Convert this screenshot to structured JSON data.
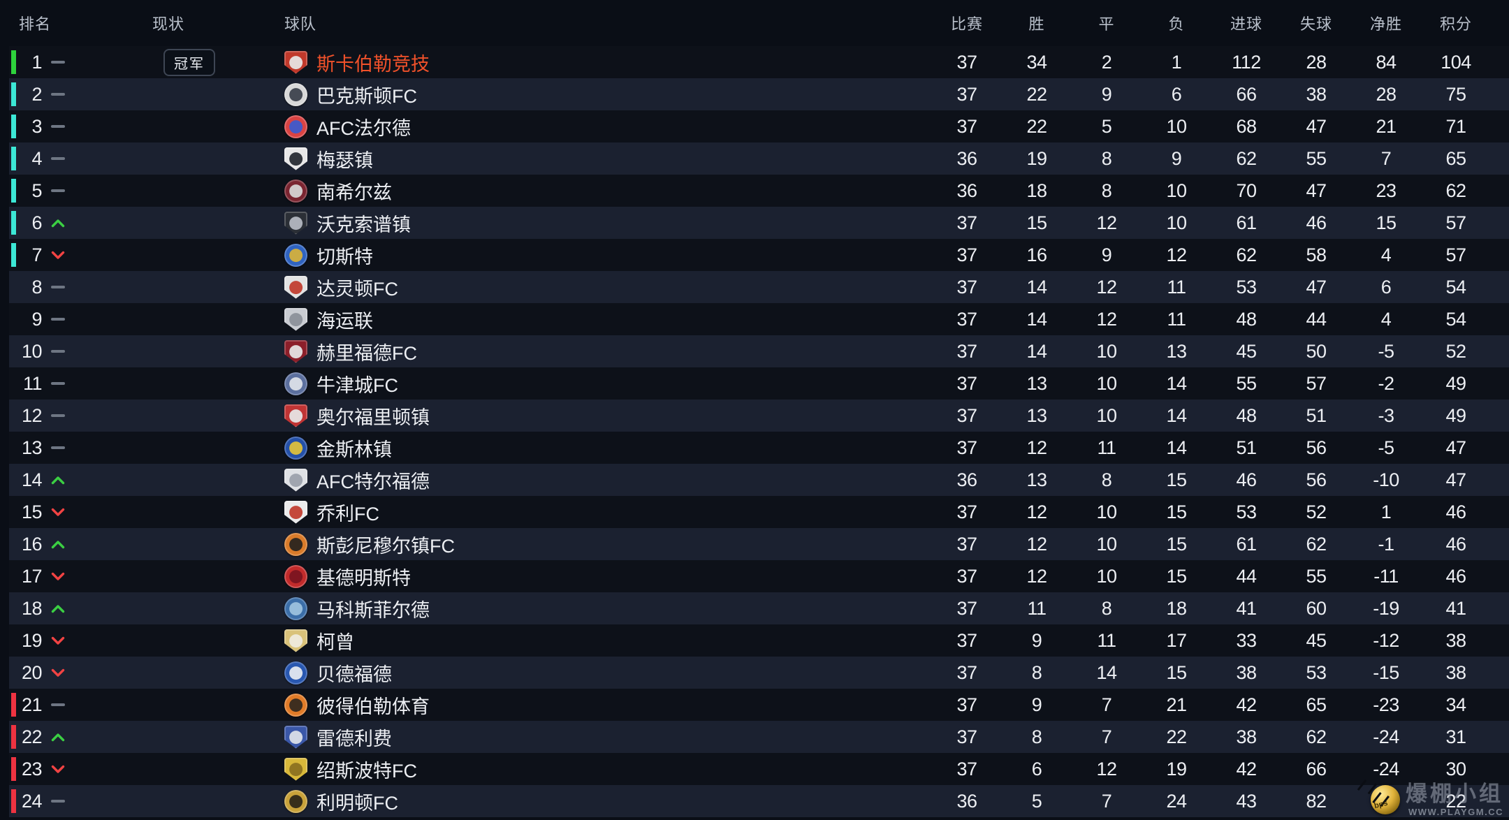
{
  "table": {
    "headers": {
      "rank": "排名",
      "status": "现状",
      "team": "球队",
      "stats": [
        "比赛",
        "胜",
        "平",
        "负",
        "进球",
        "失球",
        "净胜",
        "积分"
      ]
    },
    "champion_badge": "冠军",
    "rows": [
      {
        "rank": 1,
        "status": "steady",
        "zone": "green",
        "champion": true,
        "team": "斯卡伯勒竞技",
        "crest": {
          "shape": "shield",
          "colors": [
            "#c0392b",
            "#e8e8e8"
          ]
        },
        "stats": [
          37,
          34,
          2,
          1,
          112,
          28,
          84,
          104
        ]
      },
      {
        "rank": 2,
        "status": "steady",
        "zone": "cyan",
        "champion": false,
        "team": "巴克斯顿FC",
        "crest": {
          "shape": "circle",
          "colors": [
            "#d8d8d8",
            "#3a3f4a"
          ]
        },
        "stats": [
          37,
          22,
          9,
          6,
          66,
          38,
          28,
          75
        ]
      },
      {
        "rank": 3,
        "status": "steady",
        "zone": "cyan",
        "champion": false,
        "team": "AFC法尔德",
        "crest": {
          "shape": "circle",
          "colors": [
            "#d94343",
            "#3b5bd0"
          ]
        },
        "stats": [
          37,
          22,
          5,
          10,
          68,
          47,
          21,
          71
        ]
      },
      {
        "rank": 4,
        "status": "steady",
        "zone": "cyan",
        "champion": false,
        "team": "梅瑟镇",
        "crest": {
          "shape": "shield",
          "colors": [
            "#e8e8e8",
            "#22262e"
          ]
        },
        "stats": [
          36,
          19,
          8,
          9,
          62,
          55,
          7,
          65
        ]
      },
      {
        "rank": 5,
        "status": "steady",
        "zone": "cyan",
        "champion": false,
        "team": "南希尔兹",
        "crest": {
          "shape": "circle",
          "colors": [
            "#7a2430",
            "#d8d8d8"
          ]
        },
        "stats": [
          36,
          18,
          8,
          10,
          70,
          47,
          23,
          62
        ]
      },
      {
        "rank": 6,
        "status": "up",
        "zone": "cyan",
        "champion": false,
        "team": "沃克索谱镇",
        "crest": {
          "shape": "shield",
          "colors": [
            "#2b2f36",
            "#b7bcc4"
          ]
        },
        "stats": [
          37,
          15,
          12,
          10,
          61,
          46,
          15,
          57
        ]
      },
      {
        "rank": 7,
        "status": "down",
        "zone": "cyan",
        "champion": false,
        "team": "切斯特",
        "crest": {
          "shape": "circle",
          "colors": [
            "#2f63c0",
            "#d9b23a"
          ]
        },
        "stats": [
          37,
          16,
          9,
          12,
          62,
          58,
          4,
          57
        ]
      },
      {
        "rank": 8,
        "status": "steady",
        "zone": null,
        "champion": false,
        "team": "达灵顿FC",
        "crest": {
          "shape": "shield",
          "colors": [
            "#e3e3e3",
            "#c0392b"
          ]
        },
        "stats": [
          37,
          14,
          12,
          11,
          53,
          47,
          6,
          54
        ]
      },
      {
        "rank": 9,
        "status": "steady",
        "zone": null,
        "champion": false,
        "team": "海运联",
        "crest": {
          "shape": "shield",
          "colors": [
            "#c9ccd2",
            "#8a8f98"
          ]
        },
        "stats": [
          37,
          14,
          12,
          11,
          48,
          44,
          4,
          54
        ]
      },
      {
        "rank": 10,
        "status": "steady",
        "zone": null,
        "champion": false,
        "team": "赫里福德FC",
        "crest": {
          "shape": "shield",
          "colors": [
            "#8c1f2a",
            "#e8e8e8"
          ]
        },
        "stats": [
          37,
          14,
          10,
          13,
          45,
          50,
          -5,
          52
        ]
      },
      {
        "rank": 11,
        "status": "steady",
        "zone": null,
        "champion": false,
        "team": "牛津城FC",
        "crest": {
          "shape": "circle",
          "colors": [
            "#5b6f9e",
            "#dfe3ea"
          ]
        },
        "stats": [
          37,
          13,
          10,
          14,
          55,
          57,
          -2,
          49
        ]
      },
      {
        "rank": 12,
        "status": "steady",
        "zone": null,
        "champion": false,
        "team": "奥尔福里顿镇",
        "crest": {
          "shape": "shield",
          "colors": [
            "#c03434",
            "#e8e8e8"
          ]
        },
        "stats": [
          37,
          13,
          10,
          14,
          48,
          51,
          -3,
          49
        ]
      },
      {
        "rank": 13,
        "status": "steady",
        "zone": null,
        "champion": false,
        "team": "金斯林镇",
        "crest": {
          "shape": "circle",
          "colors": [
            "#2450a8",
            "#e3c33a"
          ]
        },
        "stats": [
          37,
          12,
          11,
          14,
          51,
          56,
          -5,
          47
        ]
      },
      {
        "rank": 14,
        "status": "up",
        "zone": null,
        "champion": false,
        "team": "AFC特尔福德",
        "crest": {
          "shape": "shield",
          "colors": [
            "#dfe1e5",
            "#9aa0aa"
          ]
        },
        "stats": [
          36,
          13,
          8,
          15,
          46,
          56,
          -10,
          47
        ]
      },
      {
        "rank": 15,
        "status": "down",
        "zone": null,
        "champion": false,
        "team": "乔利FC",
        "crest": {
          "shape": "shield",
          "colors": [
            "#ebebeb",
            "#c0392b"
          ]
        },
        "stats": [
          37,
          12,
          10,
          15,
          53,
          52,
          1,
          46
        ]
      },
      {
        "rank": 16,
        "status": "up",
        "zone": null,
        "champion": false,
        "team": "斯彭尼穆尔镇FC",
        "crest": {
          "shape": "circle",
          "colors": [
            "#d97b2a",
            "#26221e"
          ]
        },
        "stats": [
          37,
          12,
          10,
          15,
          61,
          62,
          -1,
          46
        ]
      },
      {
        "rank": 17,
        "status": "down",
        "zone": null,
        "champion": false,
        "team": "基德明斯特",
        "crest": {
          "shape": "circle",
          "colors": [
            "#c22b2b",
            "#7a1420"
          ]
        },
        "stats": [
          37,
          12,
          10,
          15,
          44,
          55,
          -11,
          46
        ]
      },
      {
        "rank": 18,
        "status": "up",
        "zone": null,
        "champion": false,
        "team": "马科斯菲尔德",
        "crest": {
          "shape": "circle",
          "colors": [
            "#3b6ea8",
            "#9fc3e0"
          ]
        },
        "stats": [
          37,
          11,
          8,
          18,
          41,
          60,
          -19,
          41
        ]
      },
      {
        "rank": 19,
        "status": "down",
        "zone": null,
        "champion": false,
        "team": "柯曾",
        "crest": {
          "shape": "shield",
          "colors": [
            "#d9c27a",
            "#f0ece0"
          ]
        },
        "stats": [
          37,
          9,
          11,
          17,
          33,
          45,
          -12,
          38
        ]
      },
      {
        "rank": 20,
        "status": "down",
        "zone": null,
        "champion": false,
        "team": "贝德福德",
        "crest": {
          "shape": "circle",
          "colors": [
            "#2857b0",
            "#e8ecf2"
          ]
        },
        "stats": [
          37,
          8,
          14,
          15,
          38,
          53,
          -15,
          38
        ]
      },
      {
        "rank": 21,
        "status": "steady",
        "zone": "red",
        "champion": false,
        "team": "彼得伯勒体育",
        "crest": {
          "shape": "circle",
          "colors": [
            "#e07b28",
            "#30271e"
          ]
        },
        "stats": [
          37,
          9,
          7,
          21,
          42,
          65,
          -23,
          34
        ]
      },
      {
        "rank": 22,
        "status": "up",
        "zone": "red",
        "champion": false,
        "team": "雷德利费",
        "crest": {
          "shape": "shield",
          "colors": [
            "#3a57a8",
            "#dfe3ea"
          ]
        },
        "stats": [
          37,
          8,
          7,
          22,
          38,
          62,
          -24,
          31
        ]
      },
      {
        "rank": 23,
        "status": "down",
        "zone": "red",
        "champion": false,
        "team": "绍斯波特FC",
        "crest": {
          "shape": "shield",
          "colors": [
            "#d8b83a",
            "#8a6f1f"
          ]
        },
        "stats": [
          37,
          6,
          12,
          19,
          42,
          66,
          -24,
          30
        ]
      },
      {
        "rank": 24,
        "status": "steady",
        "zone": "red",
        "champion": false,
        "team": "利明顿FC",
        "crest": {
          "shape": "circle",
          "colors": [
            "#c9a23a",
            "#2a2418"
          ]
        },
        "stats": [
          36,
          5,
          7,
          24,
          43,
          82,
          -39,
          22
        ]
      }
    ]
  },
  "status_icons": {
    "steady": "dash-icon",
    "up": "up-arrow-icon",
    "down": "down-arrow-icon"
  },
  "watermark": {
    "logo_text": "bps",
    "title": "爆棚小组",
    "url": "WWW.PLAYGM.CC"
  },
  "colors": {
    "page_bg": "#0a0e16",
    "row_dark": "#0d1119",
    "row_light": "#1b2130",
    "header_text": "#b9c0cb",
    "text": "#edeff3",
    "champion_text": "#f0512a",
    "status_up": "#3bcf43",
    "status_down": "#f14343",
    "status_steady": "#6e7683",
    "zones": {
      "green": "#2ed33c",
      "cyan": "#3ce8d6",
      "red": "#ee3341"
    }
  }
}
